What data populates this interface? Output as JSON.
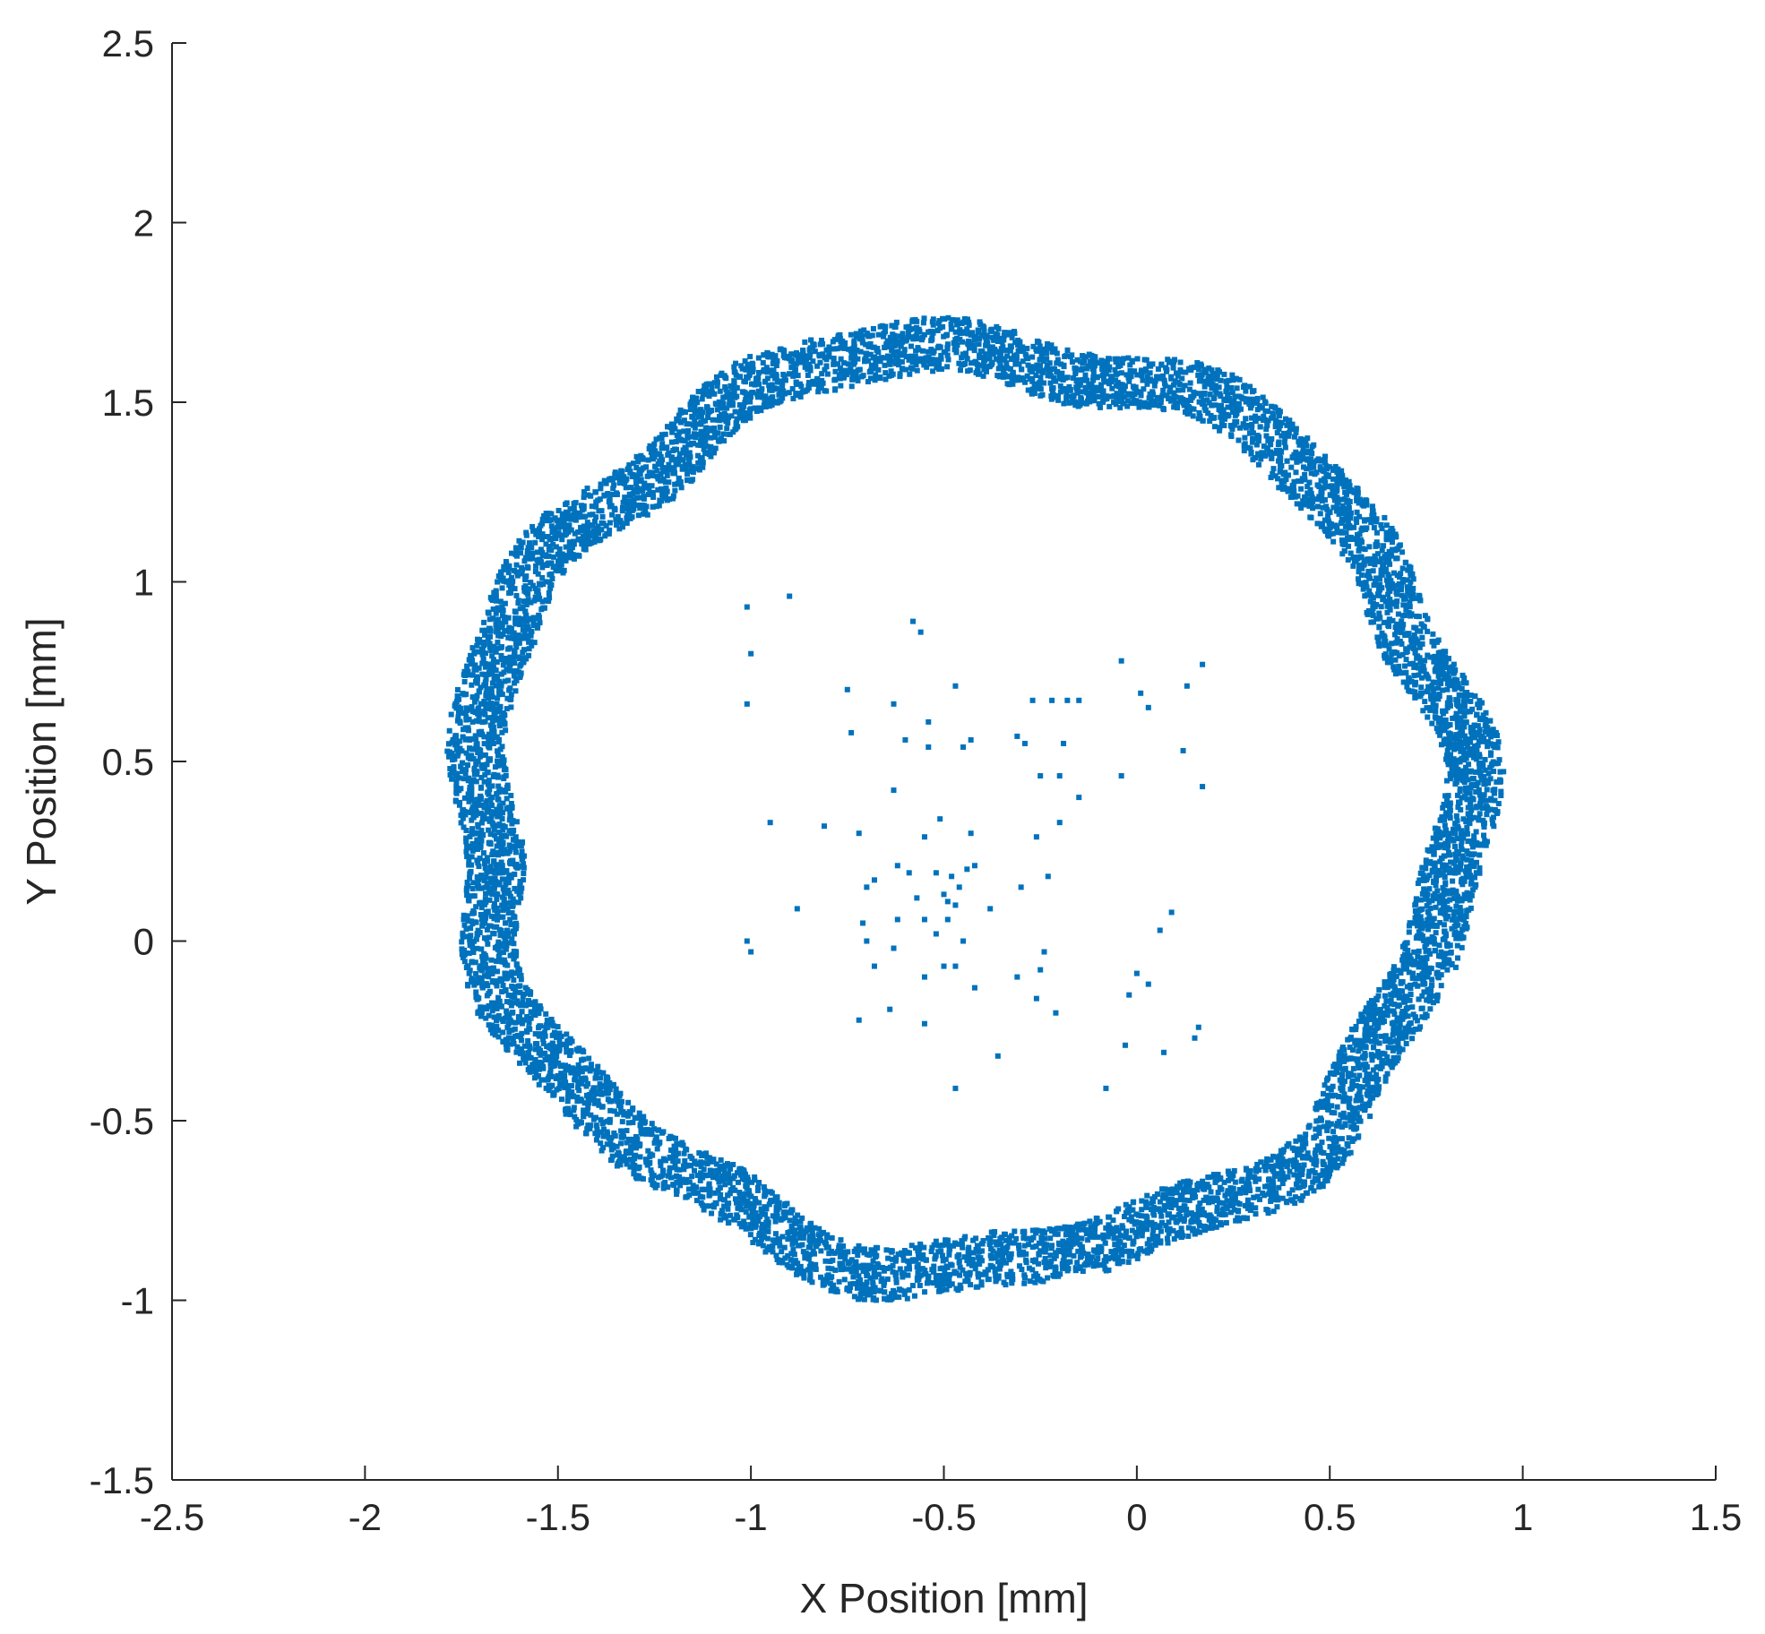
{
  "chart_data": {
    "type": "scatter",
    "title": "",
    "xlabel": "X Position [mm]",
    "ylabel": "Y Position [mm]",
    "xlim": [
      -2.5,
      1.5
    ],
    "ylim": [
      -1.5,
      2.5
    ],
    "xticks": [
      -2.5,
      -2,
      -1.5,
      -1,
      -0.5,
      0,
      0.5,
      1,
      1.5
    ],
    "xtick_labels": [
      "-2.5",
      "-2",
      "-1.5",
      "-1",
      "-0.5",
      "0",
      "0.5",
      "1",
      "1.5"
    ],
    "yticks": [
      -1.5,
      -1,
      -0.5,
      0,
      0.5,
      1,
      1.5,
      2,
      2.5
    ],
    "ytick_labels": [
      "-1.5",
      "-1",
      "-0.5",
      "0",
      "0.5",
      "1",
      "1.5",
      "2",
      "2.5"
    ],
    "grid": false,
    "box": "left-bottom axes only",
    "marker_color": "#0072BD",
    "series": [
      {
        "description_ring": "dense ring of points",
        "ring_center": [
          -0.44,
          0.37
        ],
        "ring_inner_radius": 1.2,
        "ring_outer_radius": 1.35,
        "points_inner": [
          [
            -1.01,
            0.93
          ],
          [
            -0.9,
            0.96
          ],
          [
            -1.0,
            0.8
          ],
          [
            -1.01,
            0.66
          ],
          [
            -0.58,
            0.89
          ],
          [
            -0.56,
            0.86
          ],
          [
            -0.47,
            0.71
          ],
          [
            -0.75,
            0.7
          ],
          [
            -0.63,
            0.66
          ],
          [
            -0.54,
            0.61
          ],
          [
            -0.74,
            0.58
          ],
          [
            -0.6,
            0.56
          ],
          [
            -0.54,
            0.54
          ],
          [
            -0.45,
            0.54
          ],
          [
            -0.43,
            0.56
          ],
          [
            -0.27,
            0.67
          ],
          [
            -0.22,
            0.67
          ],
          [
            -0.18,
            0.67
          ],
          [
            -0.15,
            0.67
          ],
          [
            -0.31,
            0.57
          ],
          [
            -0.29,
            0.55
          ],
          [
            -0.19,
            0.55
          ],
          [
            -0.25,
            0.46
          ],
          [
            -0.2,
            0.46
          ],
          [
            -0.15,
            0.4
          ],
          [
            -0.04,
            0.46
          ],
          [
            -0.04,
            0.78
          ],
          [
            0.01,
            0.69
          ],
          [
            0.03,
            0.65
          ],
          [
            0.13,
            0.71
          ],
          [
            0.17,
            0.77
          ],
          [
            0.12,
            0.53
          ],
          [
            0.17,
            0.43
          ],
          [
            -0.63,
            0.42
          ],
          [
            -0.95,
            0.33
          ],
          [
            -0.81,
            0.32
          ],
          [
            -0.72,
            0.3
          ],
          [
            -0.51,
            0.34
          ],
          [
            -0.55,
            0.29
          ],
          [
            -0.43,
            0.3
          ],
          [
            -0.42,
            0.21
          ],
          [
            -0.2,
            0.33
          ],
          [
            -0.26,
            0.29
          ],
          [
            -0.62,
            0.21
          ],
          [
            -0.59,
            0.19
          ],
          [
            -0.52,
            0.19
          ],
          [
            -0.48,
            0.18
          ],
          [
            -0.44,
            0.2
          ],
          [
            -0.68,
            0.17
          ],
          [
            -0.7,
            0.15
          ],
          [
            -0.57,
            0.12
          ],
          [
            -0.5,
            0.13
          ],
          [
            -0.49,
            0.11
          ],
          [
            -0.47,
            0.1
          ],
          [
            -0.46,
            0.15
          ],
          [
            -0.38,
            0.09
          ],
          [
            -0.3,
            0.15
          ],
          [
            -0.23,
            0.18
          ],
          [
            -0.88,
            0.09
          ],
          [
            -0.71,
            0.05
          ],
          [
            -0.62,
            0.06
          ],
          [
            -0.55,
            0.06
          ],
          [
            -0.49,
            0.06
          ],
          [
            -0.7,
            0.0
          ],
          [
            -0.63,
            -0.02
          ],
          [
            -0.52,
            0.02
          ],
          [
            -0.45,
            0.0
          ],
          [
            -1.01,
            0.0
          ],
          [
            -1.0,
            -0.03
          ],
          [
            0.09,
            0.08
          ],
          [
            0.06,
            0.03
          ],
          [
            -0.68,
            -0.07
          ],
          [
            -0.55,
            -0.1
          ],
          [
            -0.5,
            -0.07
          ],
          [
            -0.47,
            -0.07
          ],
          [
            -0.31,
            -0.1
          ],
          [
            -0.24,
            -0.03
          ],
          [
            -0.25,
            -0.08
          ],
          [
            0.0,
            -0.09
          ],
          [
            0.03,
            -0.12
          ],
          [
            -0.02,
            -0.15
          ],
          [
            -0.72,
            -0.22
          ],
          [
            -0.64,
            -0.19
          ],
          [
            -0.55,
            -0.23
          ],
          [
            -0.42,
            -0.13
          ],
          [
            -0.26,
            -0.16
          ],
          [
            -0.21,
            -0.2
          ],
          [
            -0.36,
            -0.32
          ],
          [
            -0.03,
            -0.29
          ],
          [
            0.07,
            -0.31
          ],
          [
            0.15,
            -0.27
          ],
          [
            0.16,
            -0.24
          ],
          [
            -0.47,
            -0.41
          ],
          [
            -0.08,
            -0.41
          ]
        ]
      }
    ]
  }
}
